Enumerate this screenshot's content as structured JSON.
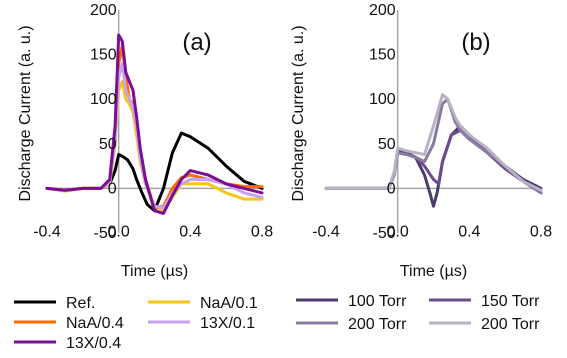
{
  "chart_data": [
    {
      "type": "line",
      "panel_label": "(a)",
      "xlabel": "Time (µs)",
      "ylabel": "Discharge Current (a. u.)",
      "xlim": [
        -0.4,
        0.8
      ],
      "ylim": [
        -50,
        200
      ],
      "xticks": [
        -0.4,
        0.0,
        0.4,
        0.8
      ],
      "xtick_labels": [
        "-0.4",
        "0.0",
        "0.4",
        "0.8"
      ],
      "yticks": [
        -50,
        0,
        50,
        100,
        150,
        200
      ],
      "ytick_labels": [
        "-50",
        "0",
        "50",
        "100",
        "150",
        "200"
      ],
      "grid": false,
      "series": [
        {
          "name": "Ref.",
          "color": "#000000",
          "x": [
            -0.4,
            -0.3,
            -0.2,
            -0.1,
            -0.05,
            -0.02,
            0.0,
            0.02,
            0.05,
            0.08,
            0.1,
            0.13,
            0.16,
            0.2,
            0.25,
            0.3,
            0.35,
            0.4,
            0.5,
            0.6,
            0.7,
            0.8
          ],
          "y": [
            0,
            -2,
            0,
            0,
            5,
            20,
            38,
            36,
            32,
            22,
            10,
            -5,
            -18,
            -25,
            0,
            40,
            62,
            58,
            45,
            25,
            8,
            0
          ]
        },
        {
          "name": "NaA/0.1",
          "color": "#f5c518",
          "x": [
            -0.4,
            -0.3,
            -0.2,
            -0.1,
            -0.05,
            -0.02,
            0.0,
            0.02,
            0.04,
            0.06,
            0.08,
            0.1,
            0.12,
            0.15,
            0.2,
            0.25,
            0.3,
            0.35,
            0.4,
            0.5,
            0.6,
            0.7,
            0.8
          ],
          "y": [
            0,
            -3,
            0,
            0,
            5,
            50,
            110,
            120,
            100,
            95,
            85,
            60,
            30,
            5,
            -20,
            -25,
            -10,
            5,
            5,
            5,
            -5,
            -12,
            -12
          ]
        },
        {
          "name": "NaA/0.4",
          "color": "#ff6a00",
          "x": [
            -0.4,
            -0.3,
            -0.2,
            -0.1,
            -0.05,
            -0.02,
            0.0,
            0.02,
            0.04,
            0.06,
            0.08,
            0.1,
            0.12,
            0.15,
            0.2,
            0.25,
            0.3,
            0.35,
            0.4,
            0.5,
            0.6,
            0.7,
            0.8
          ],
          "y": [
            0,
            -2,
            0,
            0,
            8,
            60,
            140,
            160,
            125,
            100,
            95,
            75,
            40,
            10,
            -22,
            -20,
            0,
            12,
            15,
            10,
            5,
            2,
            2
          ]
        },
        {
          "name": "13X/0.1",
          "color": "#c8a2f0",
          "x": [
            -0.4,
            -0.3,
            -0.2,
            -0.1,
            -0.05,
            -0.02,
            0.0,
            0.02,
            0.04,
            0.06,
            0.08,
            0.1,
            0.12,
            0.15,
            0.2,
            0.25,
            0.3,
            0.35,
            0.4,
            0.5,
            0.6,
            0.7,
            0.8
          ],
          "y": [
            0,
            -2,
            0,
            0,
            6,
            55,
            125,
            140,
            110,
            100,
            90,
            70,
            35,
            5,
            -20,
            -22,
            -5,
            5,
            10,
            10,
            5,
            -5,
            -10
          ]
        },
        {
          "name": "13X/0.4",
          "color": "#7b0d96",
          "x": [
            -0.4,
            -0.3,
            -0.2,
            -0.1,
            -0.05,
            -0.02,
            0.0,
            0.02,
            0.04,
            0.06,
            0.08,
            0.1,
            0.12,
            0.15,
            0.2,
            0.25,
            0.3,
            0.35,
            0.4,
            0.5,
            0.6,
            0.7,
            0.8
          ],
          "y": [
            0,
            -2,
            0,
            0,
            10,
            70,
            172,
            165,
            130,
            120,
            110,
            80,
            45,
            10,
            -25,
            -28,
            -8,
            10,
            20,
            15,
            5,
            0,
            -5
          ]
        }
      ]
    },
    {
      "type": "line",
      "panel_label": "(b)",
      "xlabel": "Time (µs)",
      "ylabel": "Discharge Current (a. u.)",
      "xlim": [
        -0.4,
        0.8
      ],
      "ylim": [
        -50,
        200
      ],
      "xticks": [
        -0.4,
        0.0,
        0.4,
        0.8
      ],
      "xtick_labels": [
        "-0.4",
        "0.0",
        "0.4",
        "0.8"
      ],
      "yticks": [
        -50,
        0,
        50,
        100,
        150,
        200
      ],
      "ytick_labels": [
        "-50",
        "0",
        "50",
        "100",
        "150",
        "200"
      ],
      "grid": false,
      "series": [
        {
          "name": "100 Torr",
          "color": "#4b3a6b",
          "x": [
            -0.4,
            -0.2,
            -0.1,
            -0.05,
            -0.02,
            0.0,
            0.05,
            0.1,
            0.15,
            0.18,
            0.2,
            0.22,
            0.25,
            0.3,
            0.35,
            0.4,
            0.5,
            0.6,
            0.7,
            0.8
          ],
          "y": [
            0,
            0,
            0,
            0,
            15,
            42,
            40,
            35,
            15,
            -5,
            -20,
            -5,
            30,
            60,
            70,
            60,
            40,
            25,
            10,
            0
          ]
        },
        {
          "name": "150 Torr",
          "color": "#6a4c8e",
          "x": [
            -0.4,
            -0.2,
            -0.1,
            -0.05,
            -0.02,
            0.0,
            0.05,
            0.1,
            0.15,
            0.2,
            0.23,
            0.25,
            0.3,
            0.35,
            0.4,
            0.5,
            0.6,
            0.7,
            0.8
          ],
          "y": [
            0,
            0,
            0,
            0,
            15,
            40,
            38,
            35,
            25,
            10,
            5,
            30,
            60,
            65,
            58,
            40,
            22,
            8,
            -5
          ]
        },
        {
          "name": "200 Torr",
          "color": "#8a7aa0",
          "x": [
            -0.4,
            -0.2,
            -0.1,
            -0.05,
            -0.02,
            0.0,
            0.05,
            0.1,
            0.15,
            0.2,
            0.25,
            0.28,
            0.32,
            0.35,
            0.4,
            0.5,
            0.6,
            0.7,
            0.8
          ],
          "y": [
            0,
            0,
            0,
            0,
            15,
            40,
            38,
            35,
            30,
            50,
            95,
            100,
            75,
            65,
            55,
            40,
            25,
            8,
            -5
          ]
        },
        {
          "name": "200 Torr",
          "color": "#b9b2c4",
          "x": [
            -0.4,
            -0.2,
            -0.1,
            -0.05,
            -0.02,
            0.0,
            0.05,
            0.1,
            0.15,
            0.2,
            0.25,
            0.28,
            0.32,
            0.35,
            0.4,
            0.5,
            0.6,
            0.7,
            0.8
          ],
          "y": [
            0,
            0,
            0,
            0,
            18,
            45,
            42,
            40,
            38,
            70,
            105,
            100,
            80,
            70,
            60,
            45,
            25,
            8,
            -2
          ]
        }
      ]
    }
  ]
}
